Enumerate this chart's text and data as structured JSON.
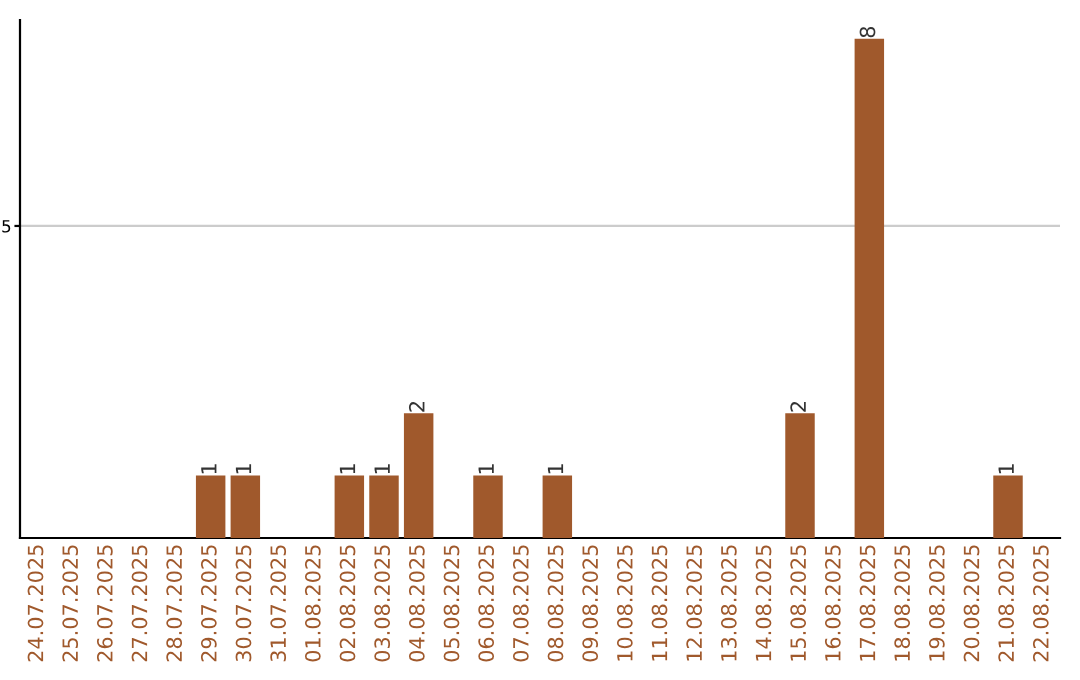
{
  "chart_data": {
    "type": "bar",
    "categories": [
      "24.07.2025",
      "25.07.2025",
      "26.07.2025",
      "27.07.2025",
      "28.07.2025",
      "29.07.2025",
      "30.07.2025",
      "31.07.2025",
      "01.08.2025",
      "02.08.2025",
      "03.08.2025",
      "04.08.2025",
      "05.08.2025",
      "06.08.2025",
      "07.08.2025",
      "08.08.2025",
      "09.08.2025",
      "10.08.2025",
      "11.08.2025",
      "12.08.2025",
      "13.08.2025",
      "14.08.2025",
      "15.08.2025",
      "16.08.2025",
      "17.08.2025",
      "18.08.2025",
      "19.08.2025",
      "20.08.2025",
      "21.08.2025",
      "22.08.2025"
    ],
    "values": [
      0,
      0,
      0,
      0,
      0,
      1,
      1,
      0,
      0,
      1,
      1,
      2,
      0,
      1,
      0,
      1,
      0,
      0,
      0,
      0,
      0,
      0,
      2,
      0,
      8,
      0,
      0,
      0,
      1,
      0
    ],
    "color": "#a0592c",
    "value_labels": [
      null,
      null,
      null,
      null,
      null,
      "1",
      "1",
      null,
      null,
      "1",
      "1",
      "2",
      null,
      "1",
      null,
      "1",
      null,
      null,
      null,
      null,
      null,
      null,
      "2",
      null,
      "8",
      null,
      null,
      null,
      "1",
      null
    ],
    "ylim": [
      0,
      8.3
    ],
    "yticks": [
      5
    ],
    "grid": "y"
  }
}
